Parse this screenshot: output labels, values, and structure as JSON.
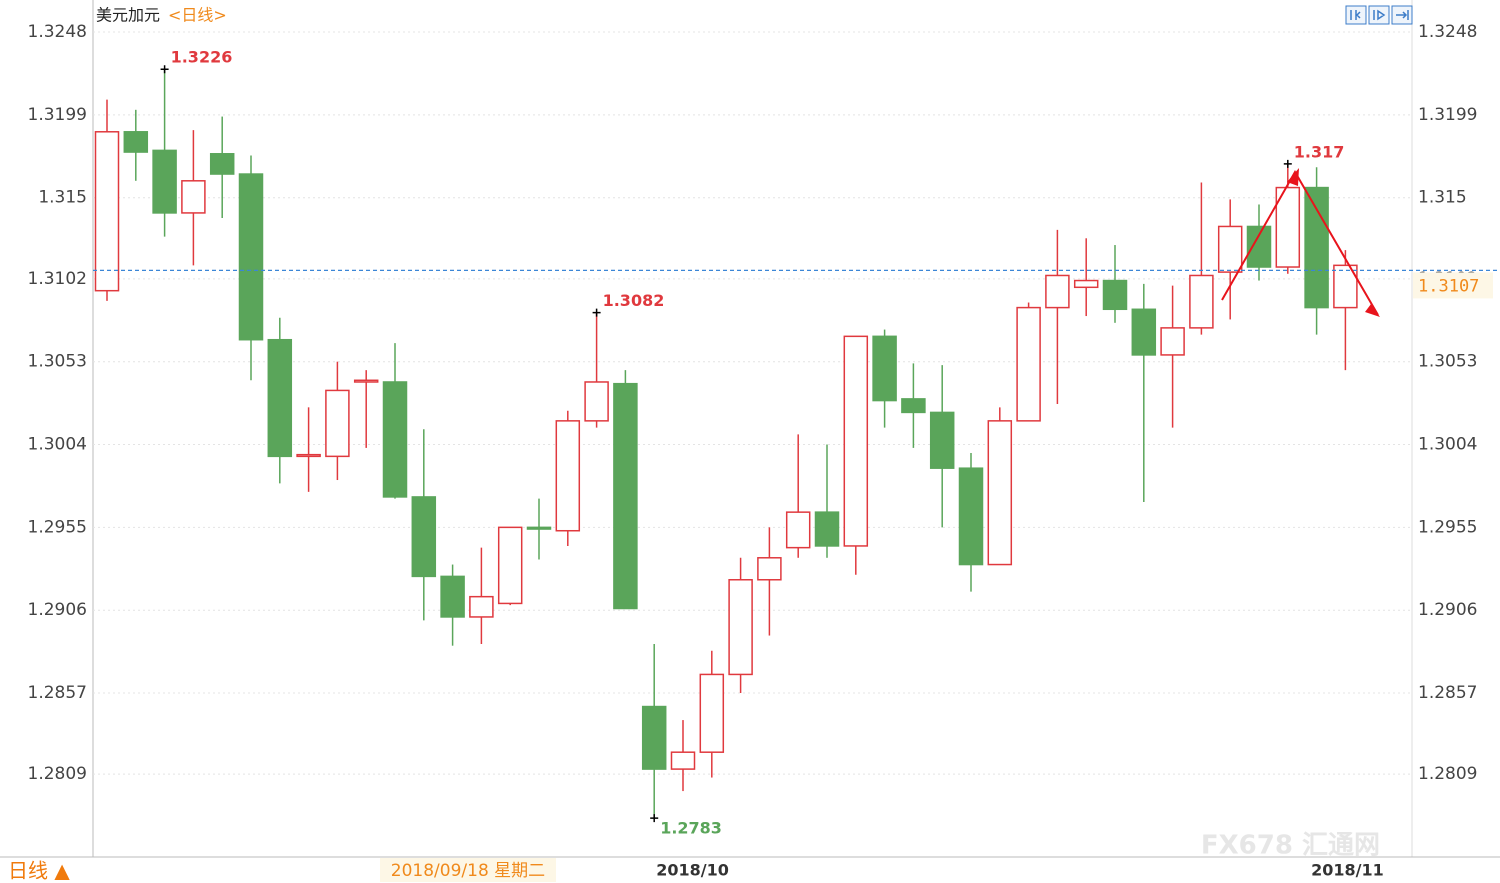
{
  "chart_data": {
    "type": "candlestick",
    "title": "美元加元",
    "subtitle": "<日线>",
    "categories": [
      null,
      null,
      null,
      null,
      null,
      null,
      null,
      null,
      null,
      null,
      null,
      null,
      null,
      null,
      null,
      null,
      null,
      null,
      null,
      "2018/10",
      null,
      null,
      null,
      null,
      null,
      null,
      null,
      null,
      null,
      null,
      null,
      null,
      null,
      null,
      null,
      null,
      null,
      null,
      null,
      null,
      null,
      null,
      null,
      "2018/11"
    ],
    "open": [
      1.3095,
      1.3189,
      1.3178,
      1.3141,
      1.3176,
      1.3164,
      1.3066,
      1.2997,
      1.2997,
      1.3041,
      1.3041,
      1.2973,
      1.2926,
      1.2902,
      1.291,
      1.2955,
      1.2953,
      1.3018,
      1.304,
      1.2849,
      1.2812,
      1.2822,
      1.2868,
      1.2924,
      1.2943,
      1.2964,
      1.2944,
      1.3068,
      1.3031,
      1.3023,
      1.299,
      1.2933,
      1.3018,
      1.3085,
      1.3097,
      1.3101,
      1.3084,
      1.3057,
      1.3073,
      1.3106,
      1.3133,
      1.3109,
      1.3156,
      1.3085
    ],
    "high": [
      1.3208,
      1.3202,
      1.3226,
      1.319,
      1.3198,
      1.3175,
      1.3079,
      1.3026,
      1.3053,
      1.3048,
      1.3064,
      1.3013,
      1.2933,
      1.2943,
      1.2955,
      1.2972,
      1.3024,
      1.3082,
      1.3048,
      1.2886,
      1.2841,
      1.2882,
      1.2937,
      1.2955,
      1.301,
      1.3004,
      1.3068,
      1.3072,
      1.3052,
      1.3051,
      1.2999,
      1.3026,
      1.3088,
      1.3131,
      1.3126,
      1.3122,
      1.3099,
      1.3098,
      1.3159,
      1.3149,
      1.3146,
      1.317,
      1.3168,
      1.3119
    ],
    "low": [
      1.3089,
      1.316,
      1.3127,
      1.311,
      1.3138,
      1.3042,
      1.2981,
      1.2976,
      1.2983,
      1.3002,
      1.2972,
      1.29,
      1.2885,
      1.2886,
      1.2909,
      1.2936,
      1.2944,
      1.3014,
      1.2907,
      1.2783,
      1.2799,
      1.2807,
      1.2857,
      1.2891,
      1.2937,
      1.2937,
      1.2927,
      1.3014,
      1.3002,
      1.2955,
      1.2917,
      1.2933,
      1.3018,
      1.3028,
      1.308,
      1.3076,
      1.297,
      1.3014,
      1.3069,
      1.3078,
      1.3101,
      1.3105,
      1.3069,
      1.3048
    ],
    "close": [
      1.3189,
      1.3177,
      1.3141,
      1.316,
      1.3164,
      1.3066,
      1.2997,
      1.2998,
      1.3036,
      1.3042,
      1.2973,
      1.2926,
      1.2902,
      1.2914,
      1.2955,
      1.2954,
      1.3018,
      1.3041,
      1.2907,
      1.2812,
      1.2822,
      1.2868,
      1.2924,
      1.2937,
      1.2964,
      1.2944,
      1.3068,
      1.303,
      1.3023,
      1.299,
      1.2933,
      1.3018,
      1.3085,
      1.3104,
      1.3101,
      1.3084,
      1.3057,
      1.3073,
      1.3104,
      1.3133,
      1.3109,
      1.3156,
      1.3085,
      1.311
    ],
    "up_color": "#e0393e",
    "down_color": "#5aa55a",
    "ylim": [
      1.276,
      1.3264
    ],
    "yticks": [
      1.3248,
      1.3199,
      1.315,
      1.3102,
      1.3053,
      1.3004,
      1.2955,
      1.2906,
      1.2857,
      1.2809
    ],
    "grid": true,
    "last_price": 1.3107,
    "annotations": [
      1.3226,
      1.3082,
      1.2783,
      1.317
    ],
    "crosshair_date": "2018/09/18 星期二",
    "period_button": "日线 ▲",
    "watermark": "FX678 汇通网"
  }
}
